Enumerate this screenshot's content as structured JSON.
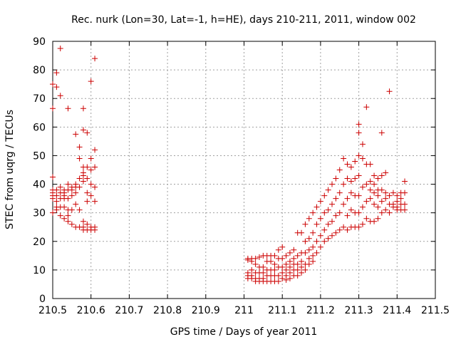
{
  "chart_data": {
    "type": "scatter",
    "title": "Rec. nurk (Lon=30, Lat=-1, h=HE), days 210-211, 2011, window 002",
    "xlabel": "GPS time / Days of year 2011",
    "ylabel": "STEC from uqrg / TECUs",
    "xlim": [
      210.5,
      211.5
    ],
    "ylim": [
      0,
      90
    ],
    "xticks": [
      "210.5",
      "210.6",
      "210.7",
      "210.8",
      "210.9",
      "211",
      "211.1",
      "211.2",
      "211.3",
      "211.4",
      "211.5"
    ],
    "yticks": [
      "0",
      "10",
      "20",
      "30",
      "40",
      "50",
      "60",
      "70",
      "80",
      "90"
    ],
    "grid": true,
    "marker": "+",
    "color": "#cc0000",
    "points": [
      [
        210.5,
        75
      ],
      [
        210.5,
        66.5
      ],
      [
        210.5,
        42.5
      ],
      [
        210.5,
        38
      ],
      [
        210.5,
        37
      ],
      [
        210.5,
        36
      ],
      [
        210.5,
        35
      ],
      [
        210.5,
        30
      ],
      [
        210.51,
        79
      ],
      [
        210.51,
        74
      ],
      [
        210.51,
        38
      ],
      [
        210.51,
        36
      ],
      [
        210.51,
        34
      ],
      [
        210.51,
        32
      ],
      [
        210.51,
        31
      ],
      [
        210.52,
        87.5
      ],
      [
        210.52,
        71
      ],
      [
        210.52,
        39
      ],
      [
        210.52,
        37
      ],
      [
        210.52,
        35
      ],
      [
        210.52,
        32
      ],
      [
        210.52,
        29
      ],
      [
        210.53,
        38
      ],
      [
        210.53,
        37
      ],
      [
        210.53,
        36
      ],
      [
        210.53,
        35
      ],
      [
        210.53,
        32
      ],
      [
        210.53,
        28
      ],
      [
        210.54,
        66.5
      ],
      [
        210.54,
        40
      ],
      [
        210.54,
        38
      ],
      [
        210.54,
        35
      ],
      [
        210.54,
        31
      ],
      [
        210.54,
        29
      ],
      [
        210.54,
        27
      ],
      [
        210.55,
        39
      ],
      [
        210.55,
        38
      ],
      [
        210.55,
        36
      ],
      [
        210.55,
        31
      ],
      [
        210.55,
        26
      ],
      [
        210.56,
        57.5
      ],
      [
        210.56,
        40
      ],
      [
        210.56,
        39
      ],
      [
        210.56,
        37
      ],
      [
        210.56,
        33
      ],
      [
        210.56,
        25
      ],
      [
        210.57,
        53
      ],
      [
        210.57,
        49
      ],
      [
        210.57,
        42
      ],
      [
        210.57,
        39
      ],
      [
        210.57,
        31
      ],
      [
        210.57,
        25
      ],
      [
        210.58,
        66.5
      ],
      [
        210.58,
        59
      ],
      [
        210.58,
        46
      ],
      [
        210.58,
        44
      ],
      [
        210.58,
        43
      ],
      [
        210.58,
        41
      ],
      [
        210.58,
        27
      ],
      [
        210.58,
        25
      ],
      [
        210.58,
        24
      ],
      [
        210.59,
        58
      ],
      [
        210.59,
        46
      ],
      [
        210.59,
        42
      ],
      [
        210.59,
        37
      ],
      [
        210.59,
        34
      ],
      [
        210.59,
        26
      ],
      [
        210.59,
        24
      ],
      [
        210.6,
        76
      ],
      [
        210.6,
        49
      ],
      [
        210.6,
        45
      ],
      [
        210.6,
        40
      ],
      [
        210.6,
        36
      ],
      [
        210.6,
        25
      ],
      [
        210.6,
        24
      ],
      [
        210.61,
        84
      ],
      [
        210.61,
        52
      ],
      [
        210.61,
        46
      ],
      [
        210.61,
        39
      ],
      [
        210.61,
        34
      ],
      [
        210.61,
        25
      ],
      [
        210.61,
        24
      ],
      [
        211.01,
        14
      ],
      [
        211.01,
        13.5
      ],
      [
        211.01,
        9
      ],
      [
        211.01,
        8
      ],
      [
        211.01,
        7
      ],
      [
        211.02,
        14
      ],
      [
        211.02,
        13
      ],
      [
        211.02,
        10
      ],
      [
        211.02,
        8
      ],
      [
        211.02,
        7
      ],
      [
        211.03,
        14
      ],
      [
        211.03,
        12
      ],
      [
        211.03,
        9
      ],
      [
        211.03,
        7
      ],
      [
        211.03,
        6
      ],
      [
        211.04,
        14.5
      ],
      [
        211.04,
        11
      ],
      [
        211.04,
        9
      ],
      [
        211.04,
        7
      ],
      [
        211.04,
        6
      ],
      [
        211.05,
        15
      ],
      [
        211.05,
        11
      ],
      [
        211.05,
        9
      ],
      [
        211.05,
        7
      ],
      [
        211.05,
        6
      ],
      [
        211.06,
        15
      ],
      [
        211.06,
        13
      ],
      [
        211.06,
        10
      ],
      [
        211.06,
        8
      ],
      [
        211.06,
        6
      ],
      [
        211.07,
        15
      ],
      [
        211.07,
        13
      ],
      [
        211.07,
        10
      ],
      [
        211.07,
        8
      ],
      [
        211.07,
        6
      ],
      [
        211.08,
        15
      ],
      [
        211.08,
        12
      ],
      [
        211.08,
        10
      ],
      [
        211.08,
        8
      ],
      [
        211.08,
        6
      ],
      [
        211.09,
        17
      ],
      [
        211.09,
        14
      ],
      [
        211.09,
        11
      ],
      [
        211.09,
        8
      ],
      [
        211.09,
        6
      ],
      [
        211.1,
        18
      ],
      [
        211.1,
        14
      ],
      [
        211.1,
        11
      ],
      [
        211.1,
        9
      ],
      [
        211.1,
        7
      ],
      [
        211.11,
        15
      ],
      [
        211.11,
        12
      ],
      [
        211.11,
        10
      ],
      [
        211.11,
        8
      ],
      [
        211.11,
        6.5
      ],
      [
        211.12,
        16
      ],
      [
        211.12,
        13
      ],
      [
        211.12,
        11
      ],
      [
        211.12,
        9
      ],
      [
        211.12,
        7
      ],
      [
        211.13,
        17
      ],
      [
        211.13,
        14
      ],
      [
        211.13,
        12
      ],
      [
        211.13,
        10
      ],
      [
        211.13,
        8
      ],
      [
        211.14,
        23
      ],
      [
        211.14,
        15
      ],
      [
        211.14,
        12
      ],
      [
        211.14,
        10
      ],
      [
        211.14,
        8
      ],
      [
        211.15,
        23
      ],
      [
        211.15,
        16
      ],
      [
        211.15,
        13
      ],
      [
        211.15,
        11
      ],
      [
        211.15,
        9
      ],
      [
        211.16,
        26
      ],
      [
        211.16,
        20
      ],
      [
        211.16,
        16
      ],
      [
        211.16,
        12
      ],
      [
        211.16,
        10
      ],
      [
        211.17,
        28
      ],
      [
        211.17,
        21
      ],
      [
        211.17,
        17
      ],
      [
        211.17,
        14
      ],
      [
        211.17,
        12
      ],
      [
        211.18,
        30
      ],
      [
        211.18,
        23
      ],
      [
        211.18,
        18
      ],
      [
        211.18,
        15
      ],
      [
        211.18,
        13
      ],
      [
        211.19,
        32
      ],
      [
        211.19,
        26
      ],
      [
        211.19,
        20
      ],
      [
        211.19,
        16
      ],
      [
        211.2,
        34
      ],
      [
        211.2,
        28
      ],
      [
        211.2,
        22
      ],
      [
        211.2,
        18
      ],
      [
        211.21,
        36
      ],
      [
        211.21,
        30
      ],
      [
        211.21,
        24
      ],
      [
        211.21,
        20
      ],
      [
        211.22,
        38
      ],
      [
        211.22,
        31
      ],
      [
        211.22,
        26
      ],
      [
        211.22,
        21
      ],
      [
        211.23,
        40
      ],
      [
        211.23,
        33
      ],
      [
        211.23,
        27
      ],
      [
        211.23,
        22
      ],
      [
        211.24,
        42
      ],
      [
        211.24,
        35
      ],
      [
        211.24,
        29
      ],
      [
        211.24,
        23
      ],
      [
        211.25,
        45
      ],
      [
        211.25,
        37
      ],
      [
        211.25,
        30
      ],
      [
        211.25,
        24
      ],
      [
        211.26,
        49
      ],
      [
        211.26,
        40
      ],
      [
        211.26,
        33
      ],
      [
        211.26,
        25
      ],
      [
        211.27,
        47
      ],
      [
        211.27,
        42
      ],
      [
        211.27,
        35
      ],
      [
        211.27,
        29
      ],
      [
        211.27,
        24
      ],
      [
        211.28,
        46
      ],
      [
        211.28,
        41
      ],
      [
        211.28,
        37
      ],
      [
        211.28,
        31
      ],
      [
        211.28,
        25
      ],
      [
        211.29,
        48
      ],
      [
        211.29,
        42
      ],
      [
        211.29,
        36
      ],
      [
        211.29,
        30
      ],
      [
        211.29,
        25
      ],
      [
        211.3,
        61
      ],
      [
        211.3,
        58
      ],
      [
        211.3,
        50
      ],
      [
        211.3,
        43
      ],
      [
        211.3,
        36
      ],
      [
        211.3,
        30
      ],
      [
        211.3,
        25
      ],
      [
        211.31,
        54
      ],
      [
        211.31,
        49
      ],
      [
        211.31,
        39
      ],
      [
        211.31,
        32
      ],
      [
        211.31,
        26
      ],
      [
        211.32,
        67
      ],
      [
        211.32,
        47
      ],
      [
        211.32,
        40
      ],
      [
        211.32,
        34
      ],
      [
        211.32,
        28
      ],
      [
        211.33,
        47
      ],
      [
        211.33,
        41
      ],
      [
        211.33,
        38
      ],
      [
        211.33,
        35
      ],
      [
        211.33,
        27
      ],
      [
        211.34,
        43
      ],
      [
        211.34,
        40
      ],
      [
        211.34,
        37
      ],
      [
        211.34,
        33
      ],
      [
        211.34,
        27
      ],
      [
        211.35,
        42
      ],
      [
        211.35,
        38
      ],
      [
        211.35,
        36
      ],
      [
        211.35,
        32
      ],
      [
        211.35,
        28
      ],
      [
        211.36,
        58
      ],
      [
        211.36,
        43
      ],
      [
        211.36,
        38
      ],
      [
        211.36,
        34
      ],
      [
        211.36,
        30
      ],
      [
        211.37,
        44
      ],
      [
        211.37,
        37
      ],
      [
        211.37,
        35
      ],
      [
        211.37,
        31
      ],
      [
        211.38,
        72.5
      ],
      [
        211.38,
        36
      ],
      [
        211.38,
        33
      ],
      [
        211.38,
        30
      ],
      [
        211.39,
        37
      ],
      [
        211.39,
        33
      ],
      [
        211.39,
        32
      ],
      [
        211.4,
        36
      ],
      [
        211.4,
        34
      ],
      [
        211.4,
        32
      ],
      [
        211.4,
        31
      ],
      [
        211.41,
        37
      ],
      [
        211.41,
        35
      ],
      [
        211.41,
        33
      ],
      [
        211.41,
        31
      ],
      [
        211.42,
        41
      ],
      [
        211.42,
        37
      ],
      [
        211.42,
        33
      ],
      [
        211.42,
        31
      ]
    ]
  }
}
